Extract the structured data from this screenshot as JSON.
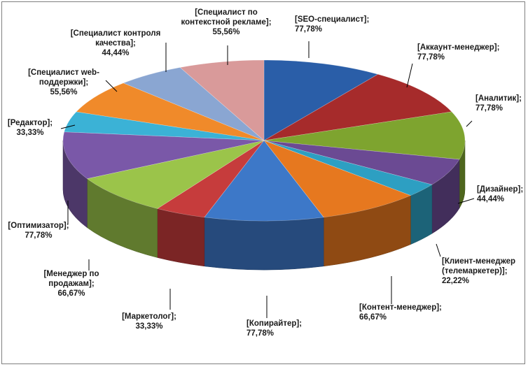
{
  "chart_data": {
    "type": "pie",
    "title": "",
    "style": "3d-tilted",
    "categories": [
      "SEO-специалист",
      "Аккаунт-менеджер",
      "Аналитик",
      "Дизайнер",
      "Клиент-менеджер (телемаркетер)",
      "Контент-менеджер",
      "Копирайтер",
      "Маркетолог",
      "Менеджер по продажам",
      "Оптимизатор",
      "Редактор",
      "Специалист web-поддержки",
      "Специалист контроля качества",
      "Специалист по контекстной рекламе"
    ],
    "values": [
      77.78,
      77.78,
      77.78,
      44.44,
      22.22,
      66.67,
      77.78,
      33.33,
      66.67,
      77.78,
      33.33,
      55.56,
      44.44,
      55.56
    ],
    "value_labels": [
      "77,78%",
      "77,78%",
      "77,78%",
      "44,44%",
      "22,22%",
      "66,67%",
      "77,78%",
      "33,33%",
      "66,67%",
      "77,78%",
      "33,33%",
      "55,56%",
      "44,44%",
      "55,56%"
    ],
    "label_lines": [
      [
        "[SEO-специалист];",
        "77,78%"
      ],
      [
        "[Аккаунт-менеджер];",
        "77,78%"
      ],
      [
        "[Аналитик];",
        "77,78%"
      ],
      [
        "[Дизайнер];",
        "44,44%"
      ],
      [
        "[Клиент-менеджер",
        "(телемаркетер)];",
        "22,22%"
      ],
      [
        "[Контент-менеджер];",
        "66,67%"
      ],
      [
        "[Копирайтер];",
        "77,78%"
      ],
      [
        "[Маркетолог];",
        "33,33%"
      ],
      [
        "[Менеджер по",
        "продажам];",
        "66,67%"
      ],
      [
        "[Оптимизатор];",
        "77,78%"
      ],
      [
        "[Редактор];",
        "33,33%"
      ],
      [
        "[Специалист web-",
        "поддержки];",
        "55,56%"
      ],
      [
        "[Специалист контроля",
        "качества];",
        "44,44%"
      ],
      [
        "[Специалист по",
        "контекстной рекламе];",
        "55,56%"
      ]
    ],
    "colors": [
      "#2a5ea8",
      "#a62b2b",
      "#7ea42f",
      "#6b4a93",
      "#2d9fc2",
      "#e6781f",
      "#3d78c8",
      "#c63c3c",
      "#9bc44a",
      "#7a58a8",
      "#3bb2d6",
      "#f08a2a",
      "#8aa6d2",
      "#d99a9a"
    ],
    "legend": "none",
    "data_labels": "outside-with-leader-lines"
  }
}
